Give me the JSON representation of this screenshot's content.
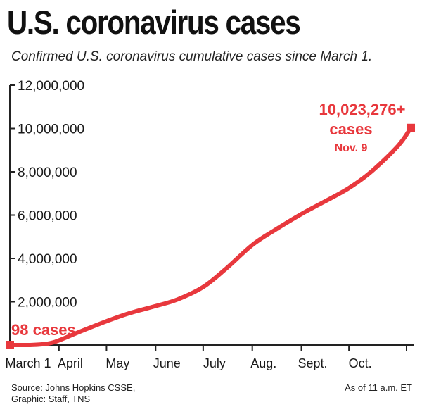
{
  "header": {
    "title": "U.S. coronavirus cases",
    "subtitle": "Confirmed U.S. coronavirus cumulative cases since March 1."
  },
  "footer": {
    "source": "Source: Johns Hopkins CSSE,",
    "credit": "Graphic: Staff, TNS",
    "timestamp": "As of 11 a.m. ET"
  },
  "colors": {
    "series": "#e8383d",
    "axis": "#222222",
    "text": "#1a1a1a"
  },
  "chart_data": {
    "type": "line",
    "title": "U.S. coronavirus cases",
    "subtitle": "Confirmed U.S. coronavirus cumulative cases since March 1.",
    "xlabel": "",
    "ylabel": "",
    "ylim": [
      0,
      12000000
    ],
    "xlim": [
      "2020-03-01",
      "2020-11-09"
    ],
    "yticks": [
      {
        "value": 2000000,
        "label": "2,000,000"
      },
      {
        "value": 4000000,
        "label": "4,000,000"
      },
      {
        "value": 6000000,
        "label": "6,000,000"
      },
      {
        "value": 8000000,
        "label": "8,000,000"
      },
      {
        "value": 10000000,
        "label": "10,000,000"
      },
      {
        "value": 12000000,
        "label": "12,000,000"
      }
    ],
    "xticks": [
      {
        "date": "2020-03-01",
        "label": "March 1"
      },
      {
        "date": "2020-04-01",
        "label": "April"
      },
      {
        "date": "2020-05-01",
        "label": "May"
      },
      {
        "date": "2020-06-01",
        "label": "June"
      },
      {
        "date": "2020-07-01",
        "label": "July"
      },
      {
        "date": "2020-08-01",
        "label": "Aug."
      },
      {
        "date": "2020-09-01",
        "label": "Sept."
      },
      {
        "date": "2020-10-01",
        "label": "Oct."
      }
    ],
    "grid": false,
    "legend": "none",
    "series": [
      {
        "points": [
          [
            "2020-03-01",
            98
          ],
          [
            "2020-03-15",
            3500
          ],
          [
            "2020-03-25",
            65000
          ],
          [
            "2020-04-01",
            215000
          ],
          [
            "2020-04-15",
            640000
          ],
          [
            "2020-05-01",
            1100000
          ],
          [
            "2020-05-15",
            1460000
          ],
          [
            "2020-06-01",
            1800000
          ],
          [
            "2020-06-15",
            2110000
          ],
          [
            "2020-07-01",
            2680000
          ],
          [
            "2020-07-15",
            3500000
          ],
          [
            "2020-08-01",
            4620000
          ],
          [
            "2020-08-15",
            5300000
          ],
          [
            "2020-09-01",
            6050000
          ],
          [
            "2020-09-15",
            6600000
          ],
          [
            "2020-10-01",
            7250000
          ],
          [
            "2020-10-15",
            8000000
          ],
          [
            "2020-11-01",
            9200000
          ],
          [
            "2020-11-09",
            10023276
          ]
        ]
      }
    ],
    "annotations": {
      "start": {
        "text": "98 cases",
        "date": "2020-03-01",
        "value": 98
      },
      "end": {
        "line1": "10,023,276+",
        "line2": "cases",
        "line3": "Nov. 9",
        "date": "2020-11-09",
        "value": 10023276
      }
    }
  }
}
